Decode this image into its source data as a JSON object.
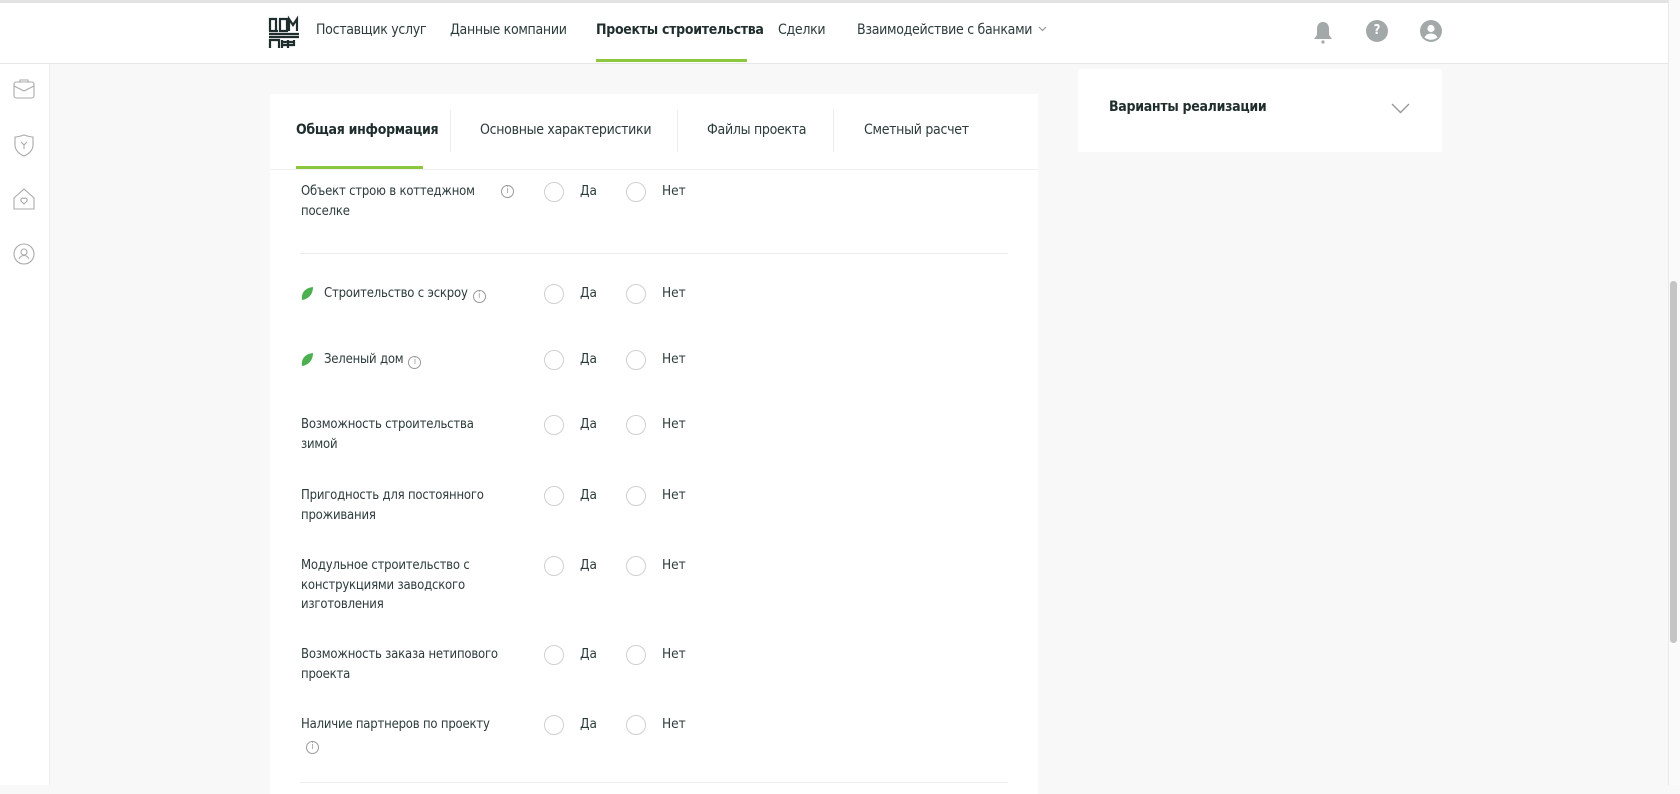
{
  "header": {
    "logo": "ДОМ РФ",
    "nav": [
      {
        "label": "Поставщик услуг"
      },
      {
        "label": "Данные компании"
      },
      {
        "label": "Проекты строительства",
        "active": true
      },
      {
        "label": "Сделки"
      },
      {
        "label": "Взаимодействие с банками",
        "has_dropdown": true
      }
    ],
    "icons": [
      "bell-icon",
      "help-icon",
      "user-icon"
    ],
    "help_glyph": "?"
  },
  "sidebar": {
    "icons": [
      "briefcase-icon",
      "shield-emblem-icon",
      "house-heart-icon",
      "profile-circle-icon"
    ]
  },
  "tabs": [
    {
      "label": "Общая информация",
      "active": true
    },
    {
      "label": "Основные характеристики"
    },
    {
      "label": "Файлы проекта"
    },
    {
      "label": "Сметный расчет"
    }
  ],
  "options": {
    "yes": "Да",
    "no": "Нет"
  },
  "rows": [
    {
      "label": "Объект строю в коттеджном поселке",
      "info": true,
      "leaf": false
    },
    {
      "label": "Строительство с эскроу",
      "info": true,
      "leaf": true
    },
    {
      "label": "Зеленый дом",
      "info": true,
      "leaf": true
    },
    {
      "label": "Возможность строительства зимой",
      "info": false,
      "leaf": false
    },
    {
      "label": "Пригодность для постоянного проживания",
      "info": false,
      "leaf": false
    },
    {
      "label": "Модульное строительство с конструкциями заводского изготовления",
      "info": false,
      "leaf": false
    },
    {
      "label": "Возможность заказа нетипового проекта",
      "info": false,
      "leaf": false
    },
    {
      "label": "Наличие партнеров по проекту",
      "info": true,
      "leaf": false
    }
  ],
  "right_panel": {
    "title": "Варианты реализации"
  },
  "colors": {
    "accent": "#8dc63f",
    "leaf": "#4caf50",
    "icon_gray": "#a3a9a8"
  }
}
